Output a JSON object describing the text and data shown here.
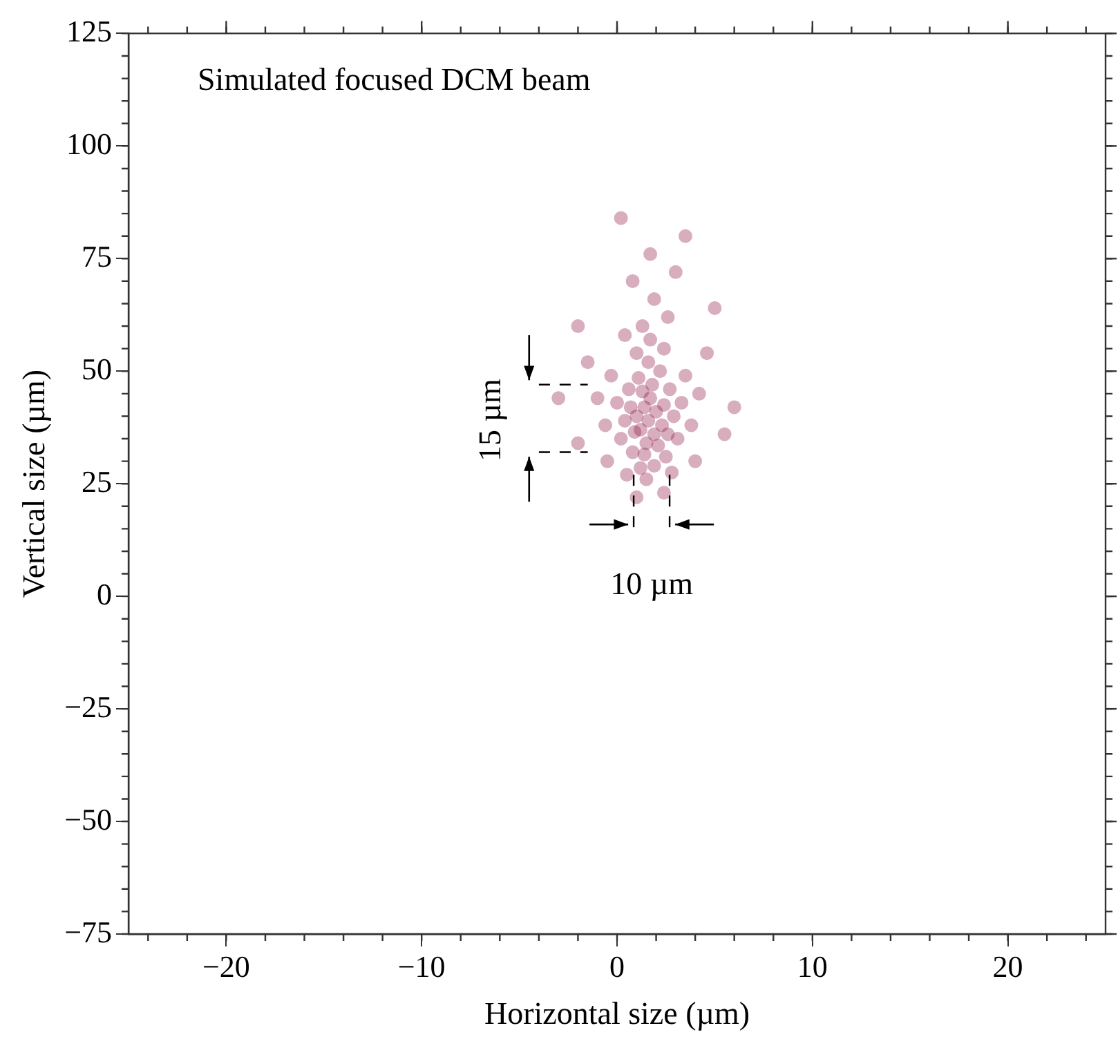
{
  "chart_data": {
    "type": "scatter",
    "xlabel": "Horizontal size (µm)",
    "ylabel": "Vertical size (µm)",
    "annotations": [
      "Simulated focused DCM beam",
      "15 µm",
      {
        "text": "10 µm",
        "x": 1.7,
        "y": 27
      }
    ],
    "series": [
      {
        "color": "#8a0b3e",
        "x": [
          1.6,
          1.2,
          2.0,
          1.4,
          1.9,
          1.0,
          2.3,
          1.7,
          1.5,
          0.9,
          2.4,
          1.3,
          2.1,
          0.7,
          2.6,
          1.8,
          1.4,
          0.4,
          2.9,
          1.1,
          2.2,
          1.6,
          0.6,
          2.7,
          0.8,
          2.5,
          1.9,
          1.2,
          0.2,
          3.1,
          3.3,
          0.0,
          1.0,
          2.4,
          1.7,
          -0.3,
          3.5,
          1.5,
          0.5,
          2.8,
          -0.6,
          3.8,
          -1.0,
          4.2,
          1.3,
          2.6,
          0.4,
          -1.5,
          4.6,
          1.9,
          0.8,
          3.0,
          1.7,
          -2.0,
          5.0,
          -0.5,
          4.0,
          1.0,
          2.4,
          -2.0,
          5.5,
          6.0,
          -3.0,
          3.5,
          0.2
        ],
        "values": [
          39,
          37,
          41,
          42,
          36,
          40,
          38,
          44,
          34,
          36.5,
          42.5,
          45.5,
          33.5,
          42,
          36,
          47,
          31.5,
          39,
          40,
          48.5,
          50,
          52,
          46,
          46,
          32,
          31,
          29,
          28.5,
          35,
          35,
          43,
          43,
          54,
          55,
          57,
          49,
          49,
          26,
          27,
          27.5,
          38,
          38,
          44,
          45,
          60,
          62,
          58,
          52,
          54,
          66,
          70,
          72,
          76,
          60,
          64,
          30,
          30,
          22,
          23,
          34,
          36,
          42,
          44,
          80,
          84
        ]
      }
    ],
    "xlim": [
      -25,
      25
    ],
    "xticks": [
      {
        "value": -20,
        "label": "−20"
      },
      {
        "value": -10,
        "label": "−10"
      },
      0,
      10,
      20
    ],
    "ylim": [
      -75,
      125
    ],
    "yticks": [
      {
        "value": -75,
        "label": "−75"
      },
      {
        "value": -50,
        "label": "−50"
      },
      {
        "value": -25,
        "label": "−25"
      },
      0,
      25,
      50,
      75,
      100,
      125
    ],
    "grid": false,
    "legend": false,
    "marker": "circle"
  }
}
